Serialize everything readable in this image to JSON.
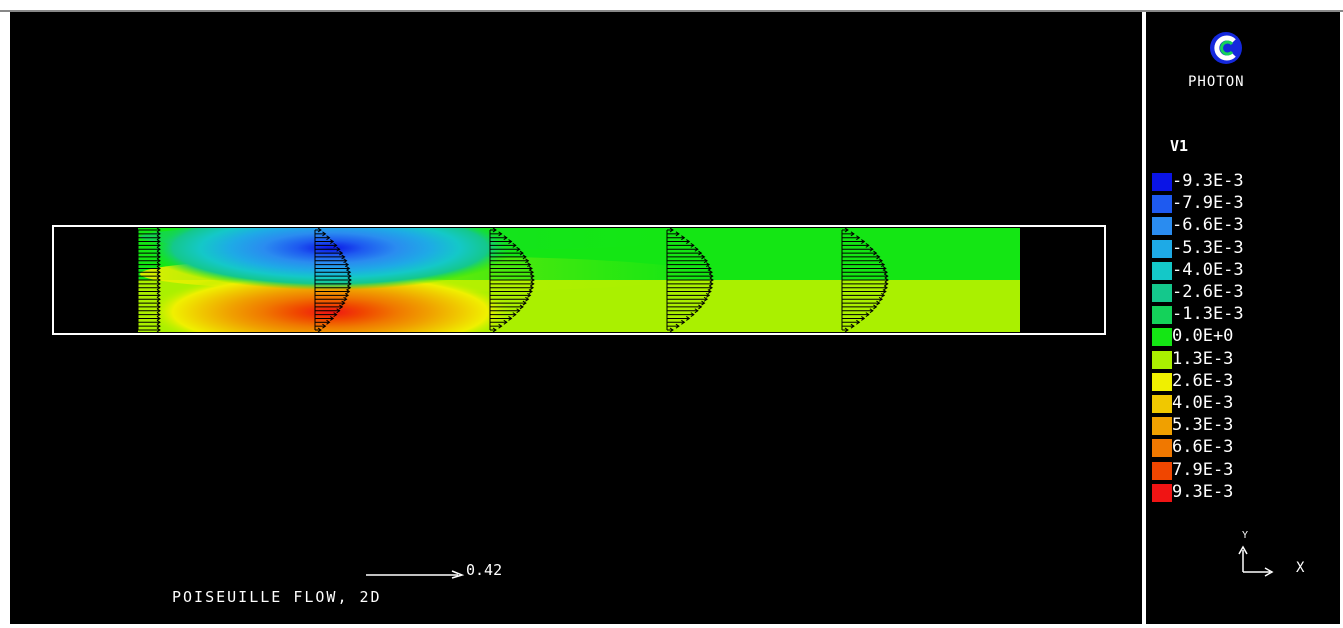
{
  "app": {
    "logo_text": "PHOTON"
  },
  "legend": {
    "variable": "V1",
    "entries": [
      {
        "label": "-9.3E-3",
        "color": "#0a14e6"
      },
      {
        "label": "-7.9E-3",
        "color": "#1e5af0"
      },
      {
        "label": "-6.6E-3",
        "color": "#2a8cf0"
      },
      {
        "label": "-5.3E-3",
        "color": "#1eaae6"
      },
      {
        "label": "-4.0E-3",
        "color": "#14c8c8"
      },
      {
        "label": "-2.6E-3",
        "color": "#14c88c"
      },
      {
        "label": "-1.3E-3",
        "color": "#14d25a"
      },
      {
        "label": "0.0E+0",
        "color": "#14e614"
      },
      {
        "label": "1.3E-3",
        "color": "#aaf000"
      },
      {
        "label": "2.6E-3",
        "color": "#f0f000"
      },
      {
        "label": "4.0E-3",
        "color": "#f0c800"
      },
      {
        "label": "5.3E-3",
        "color": "#f0a000"
      },
      {
        "label": "6.6E-3",
        "color": "#f07800"
      },
      {
        "label": "7.9E-3",
        "color": "#f04600"
      },
      {
        "label": "9.3E-3",
        "color": "#f01414"
      }
    ]
  },
  "plot": {
    "caption": "POISEUILLE FLOW, 2D",
    "vector_scale_label": "0.42",
    "axis_x_label": "X",
    "axis_y_label": "Y"
  }
}
